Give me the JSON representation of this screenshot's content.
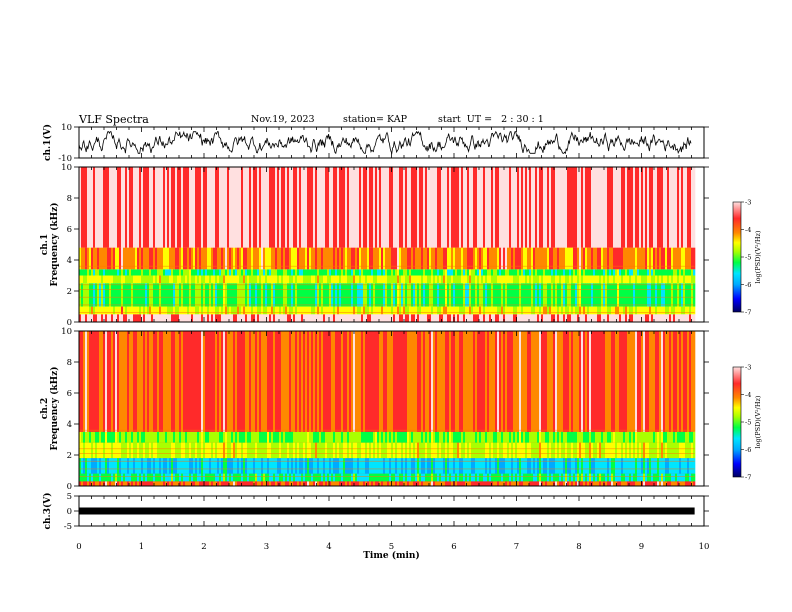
{
  "header": {
    "title": "VLF Spectra",
    "date": "Nov.19, 2023",
    "station": "station= KAP",
    "start_ut": "start  UT =   2 : 30 : 1"
  },
  "colors": {
    "spectrum_scale": [
      "#000060",
      "#0000ff",
      "#00aaff",
      "#00e5ff",
      "#00ff44",
      "#aaff00",
      "#ffff00",
      "#ff8800",
      "#ff2a2a",
      "#ffe0e0"
    ]
  },
  "chart_data": [
    {
      "type": "line",
      "panel": "ch1-waveform",
      "ylabel": "ch.1(V)",
      "ylim": [
        -10,
        10
      ],
      "yticks": [
        "10",
        "-10"
      ],
      "xlim": [
        0,
        10
      ],
      "series": [
        {
          "approx_range": [
            -5,
            5
          ]
        }
      ]
    },
    {
      "type": "heatmap",
      "panel": "ch1-spectrogram",
      "ylabel": "ch.1\nFrequency (kHz)",
      "ylim": [
        0,
        10
      ],
      "yticks": [
        "0",
        "2",
        "4",
        "6",
        "8",
        "10"
      ],
      "xlim": [
        0,
        9.85
      ],
      "colorbar": {
        "label": "log(PSD)(V²/Hz)",
        "range": [
          -7,
          -3
        ],
        "ticks": [
          "-3",
          "-4",
          "-5",
          "-6",
          "-7"
        ]
      },
      "bands": [
        {
          "from": 0.0,
          "to": 0.5,
          "level": 0.92
        },
        {
          "from": 0.5,
          "to": 1.0,
          "level": 0.62
        },
        {
          "from": 1.0,
          "to": 2.5,
          "level": 0.45
        },
        {
          "from": 2.5,
          "to": 3.0,
          "level": 0.6
        },
        {
          "from": 3.0,
          "to": 3.4,
          "level": 0.45
        },
        {
          "from": 3.4,
          "to": 4.8,
          "level": 0.75
        },
        {
          "from": 4.8,
          "to": 10.0,
          "level": 0.9
        }
      ]
    },
    {
      "type": "heatmap",
      "panel": "ch2-spectrogram",
      "ylabel": "ch.2\nFrequency (kHz)",
      "ylim": [
        0,
        10
      ],
      "yticks": [
        "0",
        "2",
        "4",
        "6",
        "8",
        "10"
      ],
      "xlim": [
        0,
        9.85
      ],
      "colorbar": {
        "label": "log(PSD)(V²/Hz)",
        "range": [
          -7,
          -3
        ],
        "ticks": [
          "-3",
          "-4",
          "-5",
          "-6",
          "-7"
        ]
      },
      "bands": [
        {
          "from": 0.0,
          "to": 0.3,
          "level": 0.8
        },
        {
          "from": 0.3,
          "to": 0.8,
          "level": 0.4
        },
        {
          "from": 0.8,
          "to": 1.8,
          "level": 0.32
        },
        {
          "from": 1.8,
          "to": 2.8,
          "level": 0.58
        },
        {
          "from": 2.8,
          "to": 3.5,
          "level": 0.5
        },
        {
          "from": 3.5,
          "to": 10.0,
          "level": 0.8
        }
      ]
    },
    {
      "type": "line",
      "panel": "ch3-waveform",
      "ylabel": "ch.3(V)",
      "ylim": [
        -5,
        5
      ],
      "yticks": [
        "5",
        "0",
        "-5"
      ],
      "xlim": [
        0,
        10
      ],
      "xlabel": "Time (min)",
      "xticks": [
        "0",
        "1",
        "2",
        "3",
        "4",
        "5",
        "6",
        "7",
        "8",
        "9",
        "10"
      ],
      "series": [
        {
          "approx_value": 0,
          "extent": [
            0,
            9.85
          ]
        }
      ]
    }
  ]
}
